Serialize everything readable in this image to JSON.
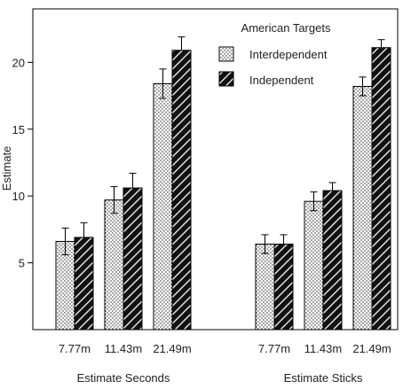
{
  "chart_data": {
    "type": "bar",
    "ylabel": "Estimate",
    "ylim": [
      0,
      24
    ],
    "yticks": [
      5,
      10,
      15,
      20
    ],
    "grid": false,
    "legend_title": "American Targets",
    "legend_position": "top-right",
    "groups": [
      {
        "name": "Estimate Seconds",
        "categories": [
          "7.77m",
          "11.43m",
          "21.49m"
        ]
      },
      {
        "name": "Estimate Sticks",
        "categories": [
          "7.77m",
          "11.43m",
          "21.49m"
        ]
      }
    ],
    "series": [
      {
        "name": "Interdependent",
        "pattern": "dots",
        "values": [
          [
            6.6,
            9.7,
            18.4
          ],
          [
            6.4,
            9.6,
            18.2
          ]
        ],
        "errors": [
          [
            1.0,
            1.0,
            1.1
          ],
          [
            0.7,
            0.7,
            0.7
          ]
        ]
      },
      {
        "name": "Independent",
        "pattern": "hatch",
        "values": [
          [
            6.9,
            10.6,
            20.9
          ],
          [
            6.4,
            10.4,
            21.1
          ]
        ],
        "errors": [
          [
            1.1,
            1.1,
            1.0
          ],
          [
            0.7,
            0.6,
            0.6
          ]
        ]
      }
    ]
  }
}
